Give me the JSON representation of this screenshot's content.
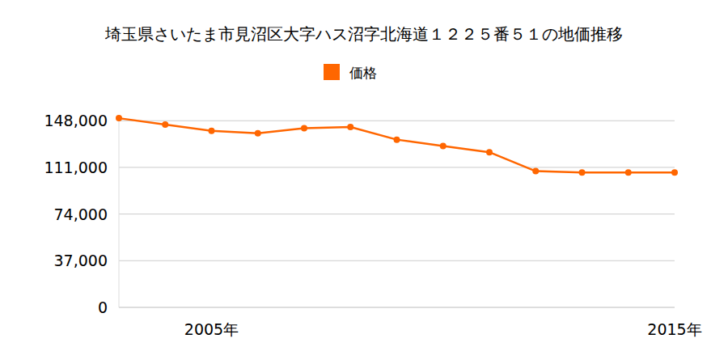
{
  "chart_data": {
    "type": "line",
    "title": "埼玉県さいたま市見沼区大字ハス沼字北海道１２２５番５１の地価推移",
    "categories": [
      null,
      null,
      "2005年",
      null,
      null,
      null,
      null,
      null,
      null,
      null,
      null,
      null,
      "2015年"
    ],
    "series": [
      {
        "name": "価格",
        "color": "#ff6600",
        "marker": "circle",
        "values": [
          150000,
          145000,
          140000,
          138000,
          142000,
          143000,
          133000,
          128000,
          123000,
          108000,
          107000,
          107000,
          107000
        ]
      }
    ],
    "ylim": [
      0,
      152000
    ],
    "yticks": [
      0,
      {
        "value": 37000,
        "label": "37,000"
      },
      {
        "value": 74000,
        "label": "74,000"
      },
      {
        "value": 111000,
        "label": "111,000"
      },
      {
        "value": 148000,
        "label": "148,000"
      }
    ],
    "grid": true,
    "legend": "top"
  }
}
